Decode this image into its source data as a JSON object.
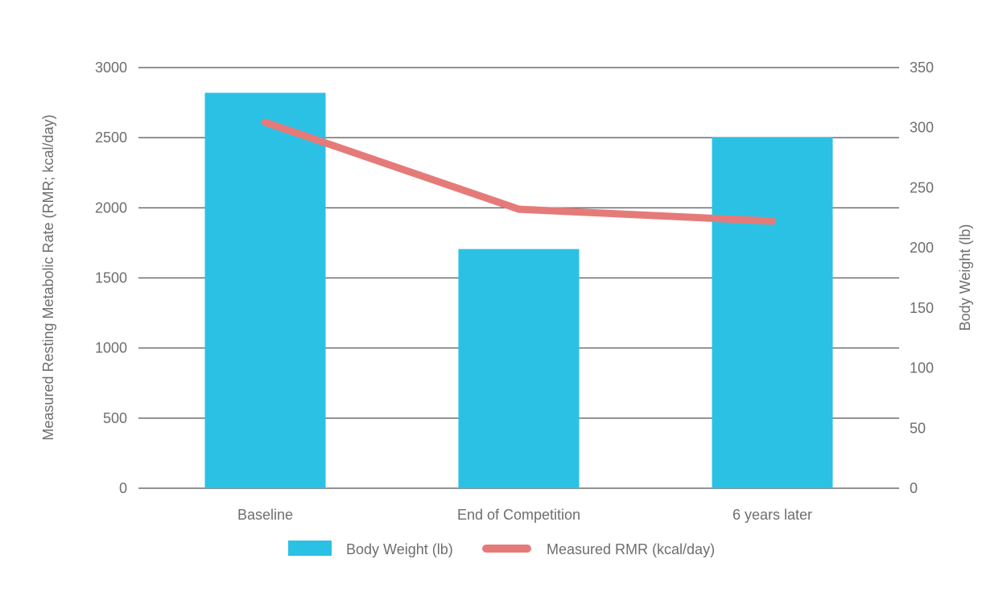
{
  "chart_data": {
    "type": "bar",
    "categories": [
      "Baseline",
      "End of Competition",
      "6 years later"
    ],
    "series": [
      {
        "name": "Body Weight (lb)",
        "type": "bar",
        "axis": "right",
        "values": [
          329,
          199,
          292
        ],
        "color": "#2bc1e5"
      },
      {
        "name": "Measured RMR (kcal/day)",
        "type": "line",
        "axis": "left",
        "values": [
          2610,
          1990,
          1905
        ],
        "color": "#e57b79"
      }
    ],
    "left_axis": {
      "label": "Measured Resting Metabolic Rate (RMR; kcal/day)",
      "ylim": [
        0,
        3000
      ],
      "ticks": [
        "0",
        "500",
        "1000",
        "1500",
        "2000",
        "2500",
        "3000"
      ]
    },
    "right_axis": {
      "label": "Body Weight (lb)",
      "ylim": [
        0,
        350
      ],
      "ticks": [
        "0",
        "50",
        "100",
        "150",
        "200",
        "250",
        "300",
        "350"
      ]
    },
    "grid": true,
    "legend_position": "bottom",
    "grid_color": "#6d6e71"
  }
}
